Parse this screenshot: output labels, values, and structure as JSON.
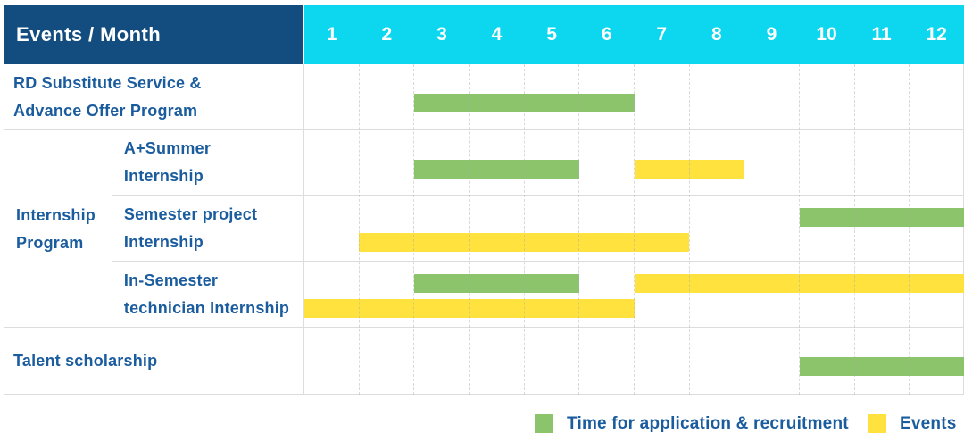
{
  "header": {
    "corner_label": "Events / Month",
    "months": [
      "1",
      "2",
      "3",
      "4",
      "5",
      "6",
      "7",
      "8",
      "9",
      "10",
      "11",
      "12"
    ]
  },
  "table": {
    "group_label": {
      "0": "Internship",
      "1": "Program"
    },
    "rows": [
      {
        "id": "rd-substitute",
        "kind": "simple",
        "label_lines": [
          "RD Substitute Service &",
          "Advance Offer Program"
        ],
        "bars": [
          {
            "color": "green",
            "start": 3,
            "end": 6,
            "line": "single"
          }
        ]
      },
      {
        "id": "a-plus-summer",
        "kind": "sub",
        "label_lines": [
          "A+Summer",
          "Internship"
        ],
        "bars": [
          {
            "color": "green",
            "start": 3,
            "end": 5,
            "line": "single"
          },
          {
            "color": "yellow",
            "start": 7,
            "end": 8,
            "line": "single"
          }
        ]
      },
      {
        "id": "semester-project",
        "kind": "sub",
        "label_lines": [
          "Semester project",
          "Internship"
        ],
        "bars": [
          {
            "color": "green",
            "start": 10,
            "end": 12,
            "line": "top"
          },
          {
            "color": "yellow",
            "start": 2,
            "end": 7,
            "line": "bottom"
          }
        ]
      },
      {
        "id": "in-semester-technician",
        "kind": "sub",
        "last_of_group": true,
        "label_lines": [
          "In-Semester",
          "technician Internship"
        ],
        "bars": [
          {
            "color": "green",
            "start": 3,
            "end": 5,
            "line": "top"
          },
          {
            "color": "yellow",
            "start": 7,
            "end": 12,
            "line": "top"
          },
          {
            "color": "yellow",
            "start": 1,
            "end": 6,
            "line": "bottom"
          }
        ]
      },
      {
        "id": "talent-scholarship",
        "kind": "simple",
        "label_lines": [
          "Talent scholarship"
        ],
        "bars": [
          {
            "color": "green",
            "start": 10,
            "end": 12,
            "line": "single"
          }
        ]
      }
    ]
  },
  "legend": [
    {
      "swatch": "green",
      "label": "Time for application & recruitment"
    },
    {
      "swatch": "yellow",
      "label": "Events"
    }
  ],
  "colors": {
    "header_bg": "#134D7F",
    "months_bg": "#0CD7EF",
    "label_text": "#1A5C9E",
    "green": "#8BC46A",
    "yellow": "#FFE23E",
    "border": "#DCDCDC"
  },
  "chart_data": {
    "type": "bar",
    "subtype": "gantt",
    "title": "Events / Month",
    "xlabel": "Month",
    "x_ticks": [
      1,
      2,
      3,
      4,
      5,
      6,
      7,
      8,
      9,
      10,
      11,
      12
    ],
    "xlim": [
      1,
      12
    ],
    "grid": "dashed-vertical-month-lines",
    "legend_position": "bottom-right",
    "series_legend": [
      "Time for application & recruitment",
      "Events"
    ],
    "rows": [
      {
        "label": "RD Substitute Service & Advance Offer Program",
        "group": null,
        "bars": [
          {
            "series": "Time for application & recruitment",
            "color": "green",
            "start_month": 3,
            "end_month": 6
          }
        ]
      },
      {
        "label": "A+Summer Internship",
        "group": "Internship Program",
        "bars": [
          {
            "series": "Time for application & recruitment",
            "color": "green",
            "start_month": 3,
            "end_month": 5
          },
          {
            "series": "Events",
            "color": "yellow",
            "start_month": 7,
            "end_month": 8
          }
        ]
      },
      {
        "label": "Semester project Internship",
        "group": "Internship Program",
        "bars": [
          {
            "series": "Time for application & recruitment",
            "color": "green",
            "start_month": 10,
            "end_month": 12
          },
          {
            "series": "Events",
            "color": "yellow",
            "start_month": 2,
            "end_month": 7
          }
        ]
      },
      {
        "label": "In-Semester technician Internship",
        "group": "Internship Program",
        "bars": [
          {
            "series": "Time for application & recruitment",
            "color": "green",
            "start_month": 3,
            "end_month": 5
          },
          {
            "series": "Events",
            "color": "yellow",
            "start_month": 7,
            "end_month": 12
          },
          {
            "series": "Events",
            "color": "yellow",
            "start_month": 1,
            "end_month": 6
          }
        ]
      },
      {
        "label": "Talent scholarship",
        "group": null,
        "bars": [
          {
            "series": "Time for application & recruitment",
            "color": "green",
            "start_month": 10,
            "end_month": 12
          }
        ]
      }
    ]
  }
}
